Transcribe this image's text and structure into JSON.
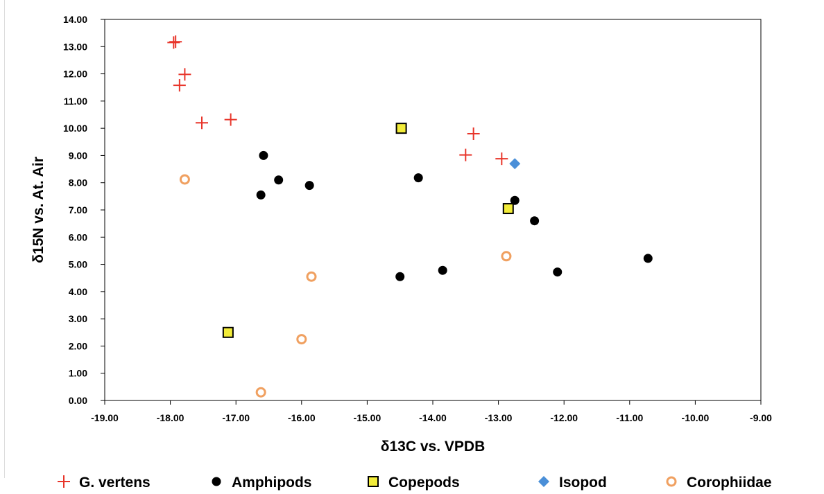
{
  "chart_data": {
    "type": "scatter",
    "xlabel": "δ13C vs. VPDB",
    "ylabel": "δ15N vs. At. Air",
    "xlim": [
      -19,
      -9
    ],
    "ylim": [
      0,
      14
    ],
    "xticks": [
      -19,
      -18,
      -17,
      -16,
      -15,
      -14,
      -13,
      -12,
      -11,
      -10,
      -9
    ],
    "yticks": [
      0,
      1,
      2,
      3,
      4,
      5,
      6,
      7,
      8,
      9,
      10,
      11,
      12,
      13,
      14
    ],
    "tick_decimals": 2,
    "grid": false,
    "legend_position": "bottom",
    "series": [
      {
        "name": "G. vertens",
        "marker": "plus",
        "color": "#e8352a",
        "points": [
          [
            -17.95,
            13.15
          ],
          [
            -17.92,
            13.18
          ],
          [
            -17.78,
            11.98
          ],
          [
            -17.86,
            11.58
          ],
          [
            -17.52,
            10.2
          ],
          [
            -17.08,
            10.32
          ],
          [
            -13.38,
            9.8
          ],
          [
            -13.5,
            9.02
          ],
          [
            -12.95,
            8.88
          ]
        ]
      },
      {
        "name": "Amphipods",
        "marker": "circle",
        "color": "#000000",
        "points": [
          [
            -16.58,
            9.0
          ],
          [
            -16.35,
            8.1
          ],
          [
            -15.88,
            7.9
          ],
          [
            -16.62,
            7.55
          ],
          [
            -14.22,
            8.18
          ],
          [
            -12.75,
            7.35
          ],
          [
            -12.45,
            6.6
          ],
          [
            -14.5,
            4.55
          ],
          [
            -13.85,
            4.78
          ],
          [
            -12.1,
            4.72
          ],
          [
            -10.72,
            5.22
          ]
        ]
      },
      {
        "name": "Copepods",
        "marker": "square",
        "color": "#f2ec3a",
        "points": [
          [
            -14.48,
            10.0
          ],
          [
            -12.85,
            7.05
          ],
          [
            -17.12,
            2.5
          ]
        ]
      },
      {
        "name": "Isopod",
        "marker": "diamond",
        "color": "#4a8fd8",
        "points": [
          [
            -12.75,
            8.7
          ]
        ]
      },
      {
        "name": "Corophiidae",
        "marker": "ring",
        "color": "#f0a060",
        "points": [
          [
            -17.78,
            8.12
          ],
          [
            -15.85,
            4.55
          ],
          [
            -16.0,
            2.25
          ],
          [
            -16.62,
            0.3
          ],
          [
            -12.88,
            5.3
          ]
        ]
      }
    ]
  }
}
